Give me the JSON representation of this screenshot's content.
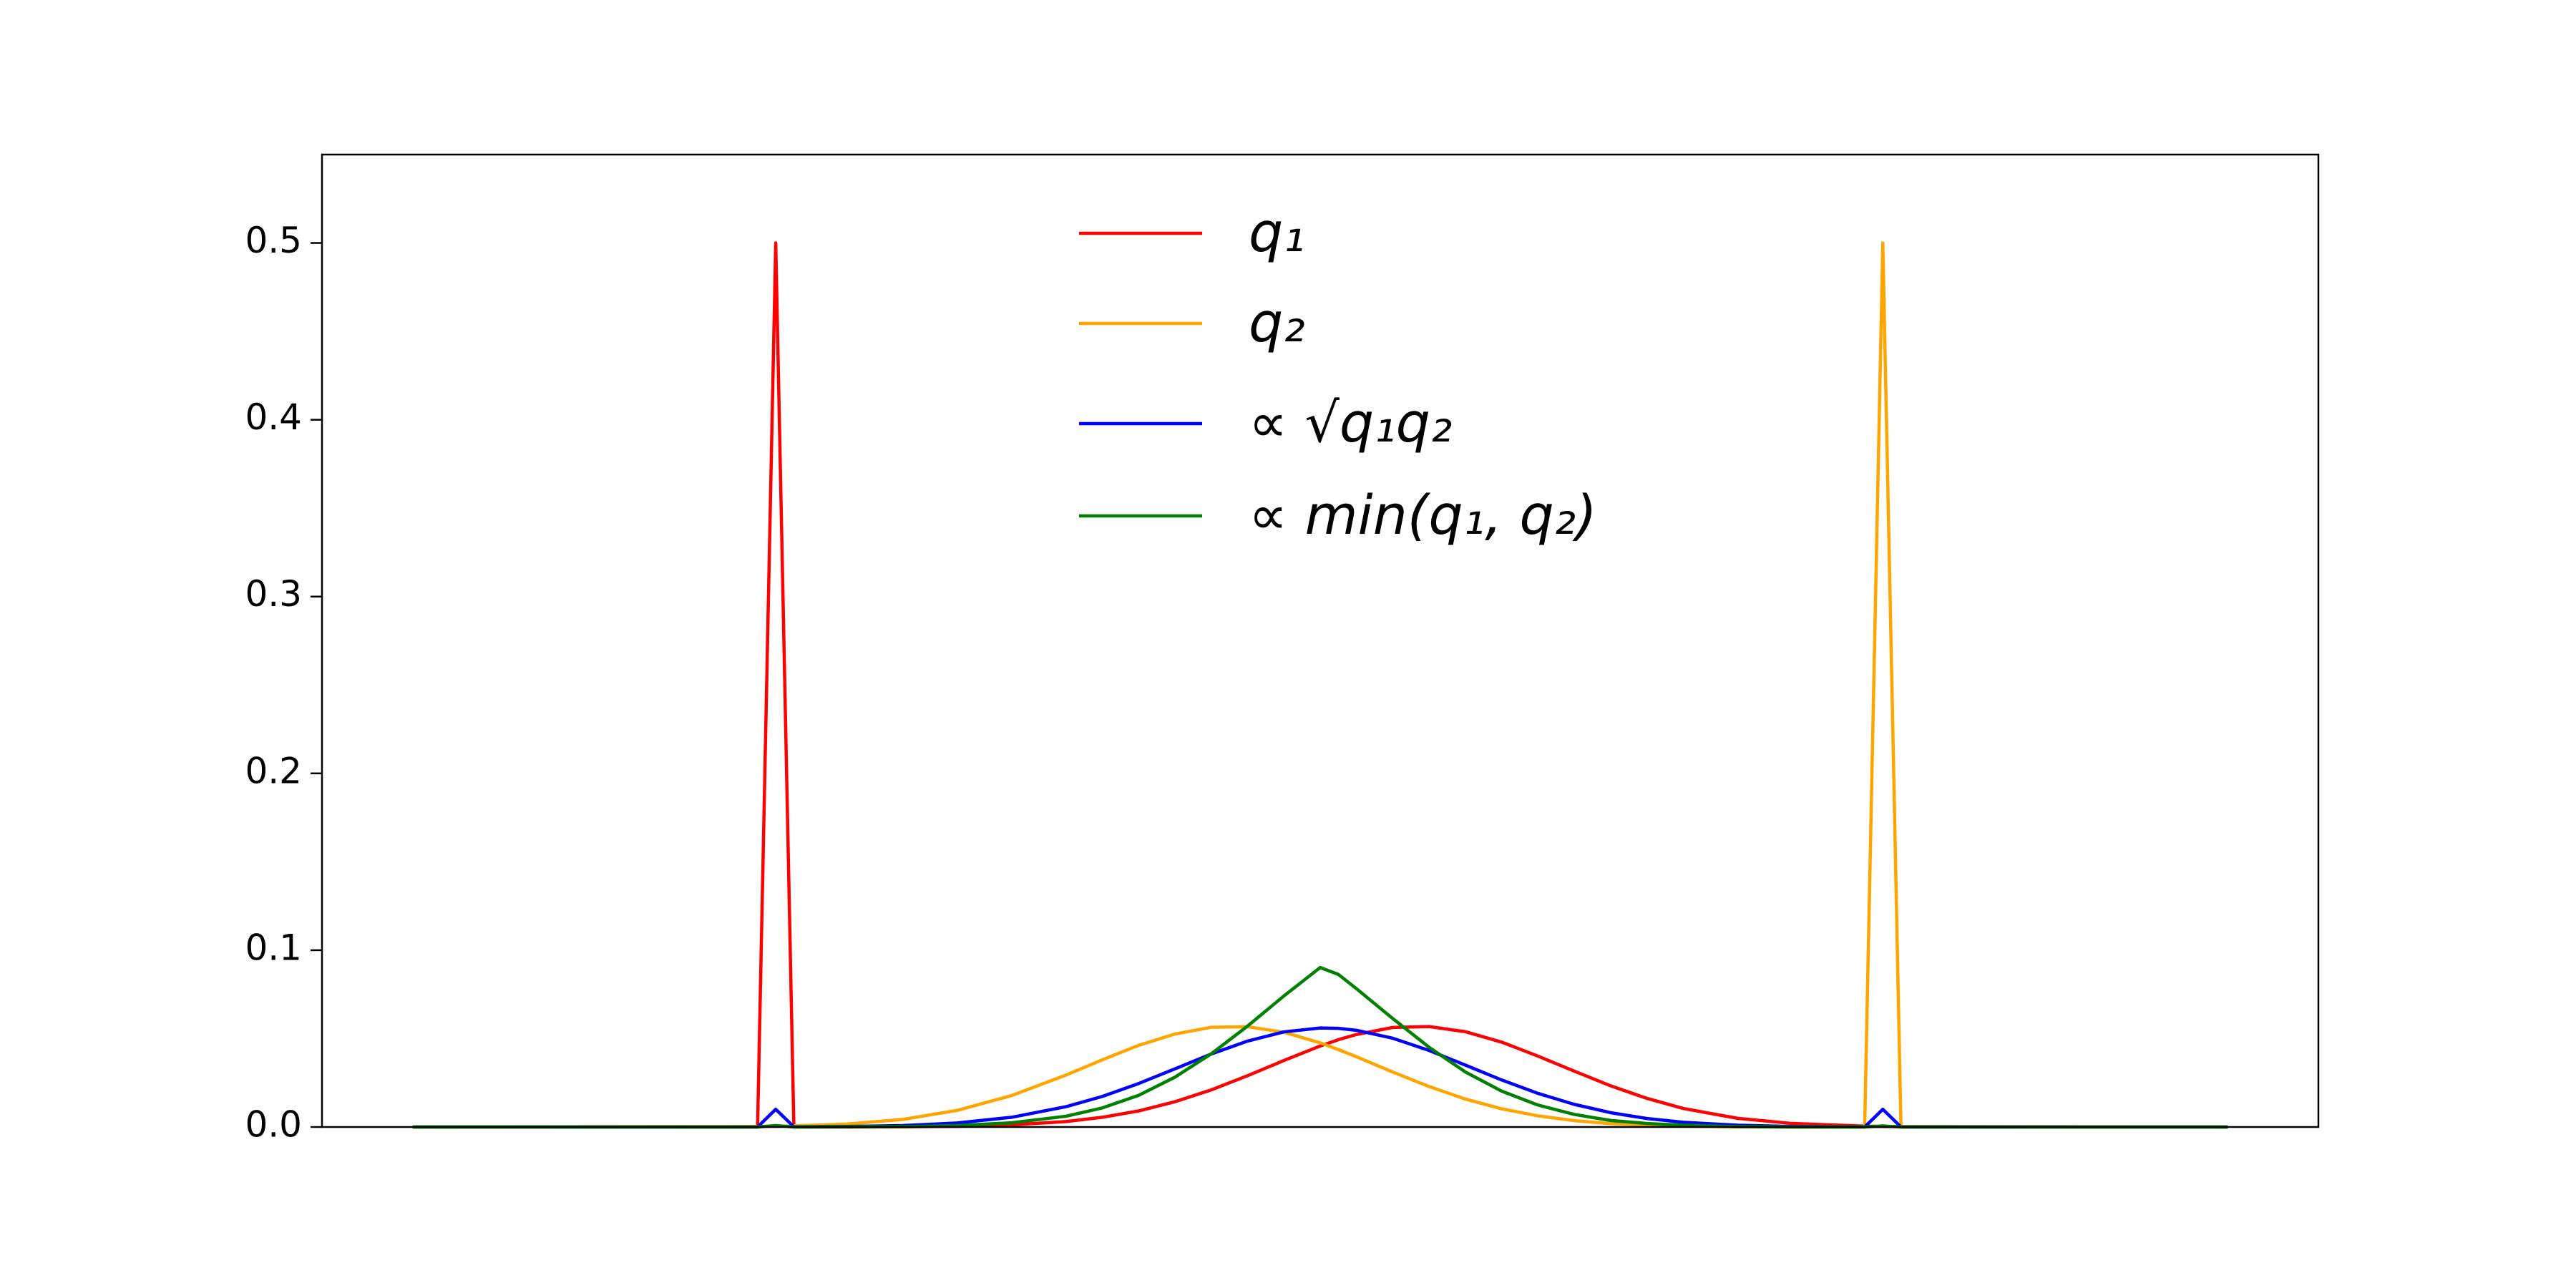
{
  "chart_data": {
    "type": "line",
    "x": [
      0,
      19,
      20,
      21,
      24,
      27,
      30,
      33,
      36,
      38,
      40,
      42,
      44,
      46,
      48,
      50,
      51,
      52,
      54,
      56,
      58,
      60,
      62,
      64,
      66,
      68,
      70,
      73,
      76,
      80,
      81,
      82,
      100
    ],
    "xlim": [
      -5,
      105
    ],
    "ylim": [
      0,
      0.55
    ],
    "yticks": [
      {
        "value": 0,
        "label": "0.0"
      },
      0.1,
      0.2,
      0.3,
      0.4,
      0.5
    ],
    "legend": "upper center",
    "series": [
      {
        "name": "q₁",
        "color": "#ff0000",
        "values": [
          0,
          0,
          0.5,
          0,
          0,
          0.0001,
          0.0004,
          0.0012,
          0.0031,
          0.0055,
          0.0091,
          0.0143,
          0.021,
          0.029,
          0.0376,
          0.0458,
          0.0494,
          0.0523,
          0.0563,
          0.0568,
          0.0539,
          0.048,
          0.0401,
          0.0316,
          0.0233,
          0.0162,
          0.0105,
          0.0049,
          0.002,
          0.0005,
          0.0003,
          0.0002,
          0
        ]
      },
      {
        "name": "q₂",
        "color": "#ffa500",
        "values": [
          0,
          0.0003,
          0.0004,
          0.0006,
          0.0017,
          0.0043,
          0.0094,
          0.0178,
          0.0294,
          0.038,
          0.0462,
          0.0526,
          0.0564,
          0.0567,
          0.0536,
          0.0476,
          0.0438,
          0.0397,
          0.0311,
          0.0229,
          0.0158,
          0.0103,
          0.0063,
          0.0036,
          0.0019,
          0.001,
          0.0005,
          0.0001,
          0,
          0,
          0.5,
          0,
          0
        ]
      },
      {
        "name": "∝ √q₁q₂",
        "color": "#0000ff",
        "values": [
          0,
          0,
          0.01,
          0.0001,
          0.0003,
          0.0008,
          0.0023,
          0.0055,
          0.0115,
          0.0173,
          0.0246,
          0.0329,
          0.0413,
          0.0486,
          0.0538,
          0.056,
          0.0558,
          0.0547,
          0.0502,
          0.0433,
          0.035,
          0.0266,
          0.019,
          0.0128,
          0.0081,
          0.0048,
          0.0027,
          0.001,
          0.0003,
          0,
          0.01,
          0,
          0
        ]
      },
      {
        "name": "∝ min(q₁, q₂)",
        "color": "#008000",
        "values": [
          0,
          0,
          0.0008,
          0,
          0.0001,
          0.0002,
          0.0008,
          0.0024,
          0.0061,
          0.0108,
          0.0179,
          0.0282,
          0.0414,
          0.0571,
          0.0741,
          0.0902,
          0.0863,
          0.0782,
          0.0613,
          0.0451,
          0.0311,
          0.0203,
          0.0124,
          0.0071,
          0.0037,
          0.002,
          0.001,
          0.0002,
          0,
          0,
          0.0006,
          0,
          0
        ]
      }
    ]
  }
}
